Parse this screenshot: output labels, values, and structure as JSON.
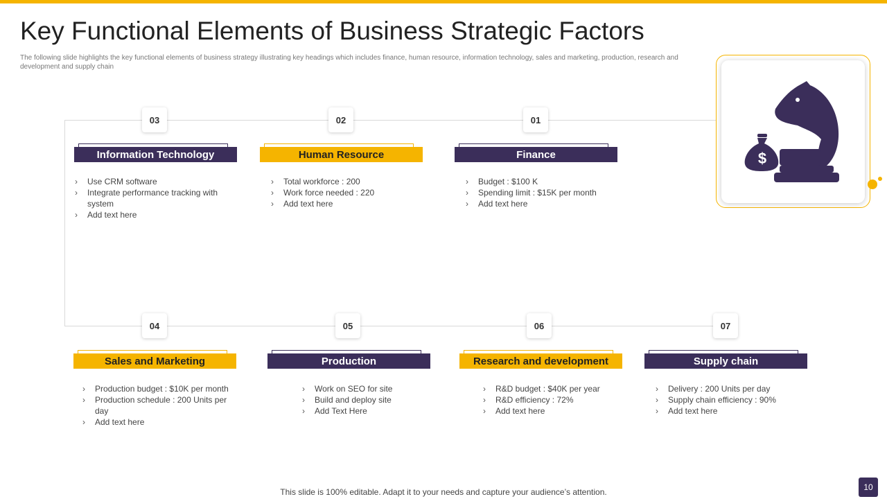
{
  "title": "Key Functional Elements of Business Strategic Factors",
  "subtitle": "The following slide highlights the key functional elements of business strategy illustrating key headings which includes finance, human resource, information technology, sales and marketing, production, research and development and supply chain",
  "icon": "chess-knight-with-money-bag-icon",
  "colors": {
    "purple": "#3b2e5a",
    "yellow": "#f5b400"
  },
  "elements": [
    {
      "number": "03",
      "heading": "Information Technology",
      "items": [
        "Use CRM software",
        "Integrate performance tracking with system",
        "Add text here"
      ]
    },
    {
      "number": "02",
      "heading": "Human Resource",
      "items": [
        "Total workforce : 200",
        "Work force needed : 220",
        "Add text here"
      ]
    },
    {
      "number": "01",
      "heading": "Finance",
      "items": [
        "Budget : $100 K",
        "Spending limit : $15K per month",
        "Add text here"
      ]
    },
    {
      "number": "04",
      "heading": "Sales and Marketing",
      "items": [
        "Production budget : $10K per month",
        "Production schedule : 200 Units per day",
        "Add text here"
      ]
    },
    {
      "number": "05",
      "heading": "Production",
      "items": [
        "Work on SEO for site",
        "Build and deploy site",
        "Add Text Here"
      ]
    },
    {
      "number": "06",
      "heading": "Research and development",
      "items": [
        "R&D budget : $40K per year",
        "R&D efficiency : 72%",
        "Add text here"
      ]
    },
    {
      "number": "07",
      "heading": "Supply chain",
      "items": [
        "Delivery  : 200 Units per day",
        "Supply chain efficiency : 90%",
        "Add text here"
      ]
    }
  ],
  "footer": "This slide is 100% editable. Adapt it to your needs and capture your audience’s attention.",
  "page_number": "10"
}
